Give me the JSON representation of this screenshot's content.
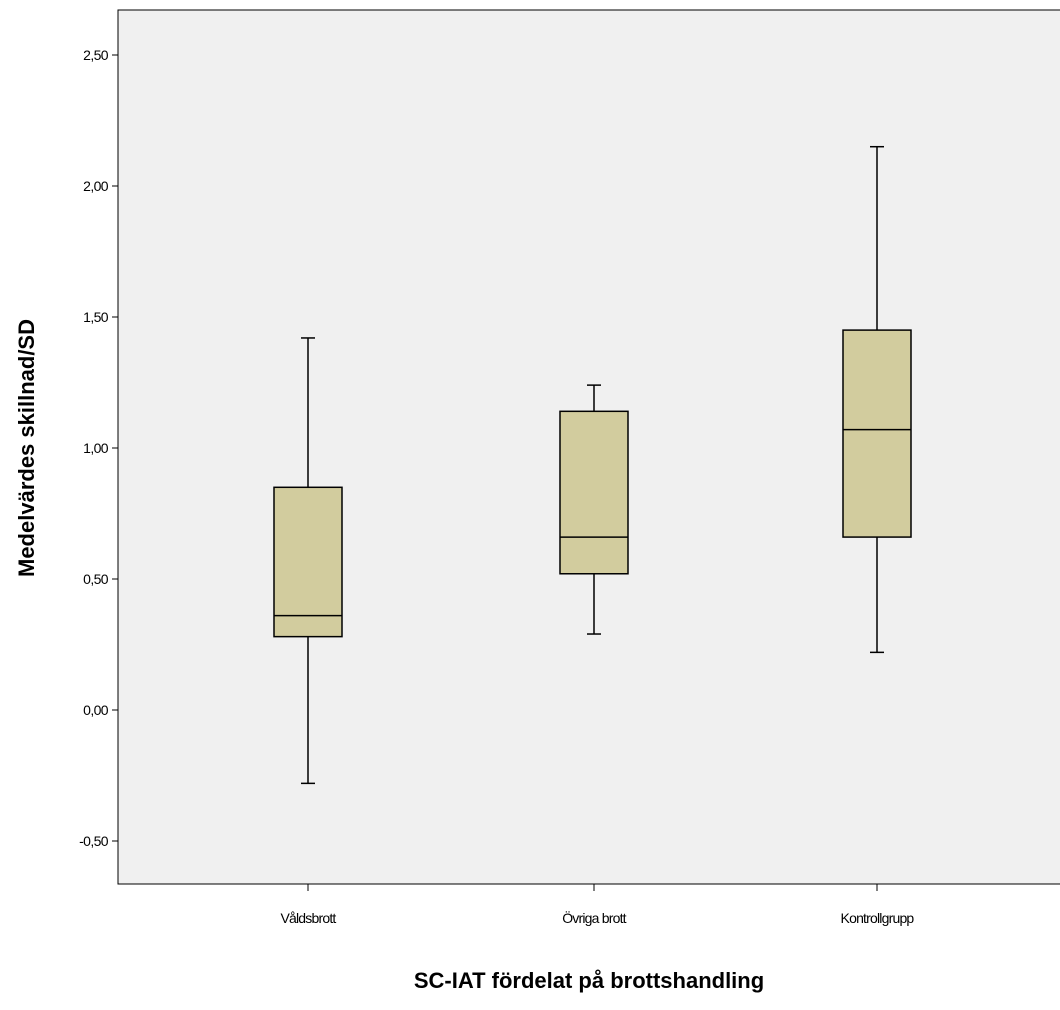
{
  "chart_data": {
    "type": "boxplot",
    "title": "",
    "xlabel": "SC-IAT fördelat på brottshandling",
    "ylabel": "Medelvärdes skillnad/SD",
    "ylim": [
      -0.65,
      2.75
    ],
    "yticks": [
      -0.5,
      0,
      0.5,
      1.0,
      1.5,
      2.0,
      2.5
    ],
    "ytick_labels": [
      "-0,50",
      "0,00",
      "0,50",
      "1,00",
      "1,50",
      "2,00",
      "2,50"
    ],
    "categories": [
      "Våldsbrott",
      "Övriga brott",
      "Kontrollgrupp"
    ],
    "boxes": [
      {
        "category": "Våldsbrott",
        "min": -0.28,
        "q1": 0.28,
        "median": 0.36,
        "q3": 0.85,
        "max": 1.42
      },
      {
        "category": "Övriga brott",
        "min": 0.29,
        "q1": 0.52,
        "median": 0.66,
        "q3": 1.14,
        "max": 1.24
      },
      {
        "category": "Kontrollgrupp",
        "min": 0.22,
        "q1": 0.66,
        "median": 1.07,
        "q3": 1.45,
        "max": 2.15
      }
    ],
    "grid": false,
    "colors": {
      "plot_background": "#f0f0f0",
      "box_fill": "#d2cc9e",
      "line": "#000000"
    }
  }
}
